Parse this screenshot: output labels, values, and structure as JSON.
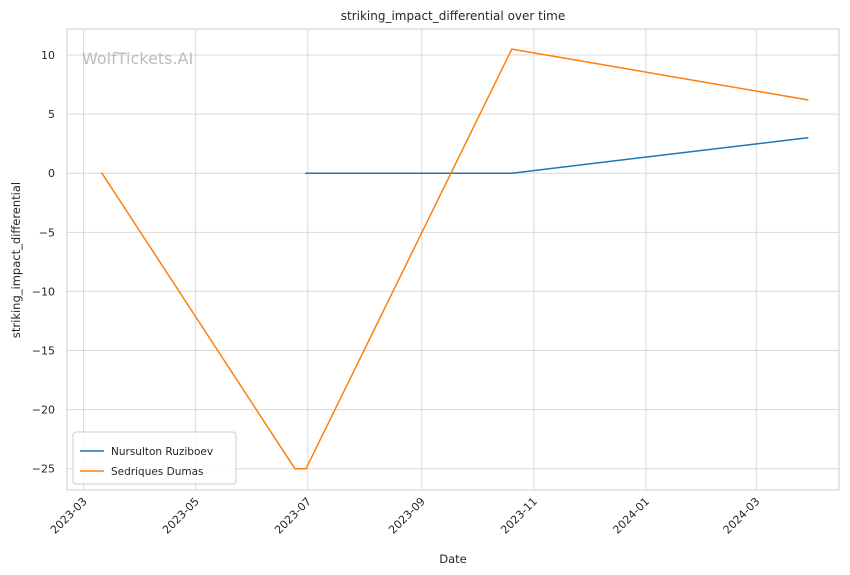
{
  "chart_data": {
    "type": "line",
    "title": "striking_impact_differential over time",
    "xlabel": "Date",
    "ylabel": "striking_impact_differential",
    "watermark": "WolfTickets.AI",
    "x_axis_type": "date",
    "xlim": [
      "2023-02-20",
      "2024-04-15"
    ],
    "ylim": [
      -26.8,
      12.2
    ],
    "x_ticks": [
      "2023-03",
      "2023-05",
      "2023-07",
      "2023-09",
      "2023-11",
      "2024-01",
      "2024-03"
    ],
    "y_ticks": [
      10,
      5,
      0,
      -5,
      -10,
      -15,
      -20,
      -25
    ],
    "grid": true,
    "legend_position": "lower-left",
    "series": [
      {
        "name": "Nursulton Ruziboev",
        "color": "#1f77b4",
        "points": [
          {
            "x": "2023-06-30",
            "y": 0
          },
          {
            "x": "2023-10-20",
            "y": 0
          },
          {
            "x": "2024-03-29",
            "y": 3
          }
        ]
      },
      {
        "name": "Sedriques Dumas",
        "color": "#ff7f0e",
        "points": [
          {
            "x": "2023-03-11",
            "y": 0
          },
          {
            "x": "2023-06-24",
            "y": -25
          },
          {
            "x": "2023-06-30",
            "y": -25
          },
          {
            "x": "2023-10-20",
            "y": 10.5
          },
          {
            "x": "2024-03-29",
            "y": 6.2
          }
        ]
      }
    ]
  }
}
